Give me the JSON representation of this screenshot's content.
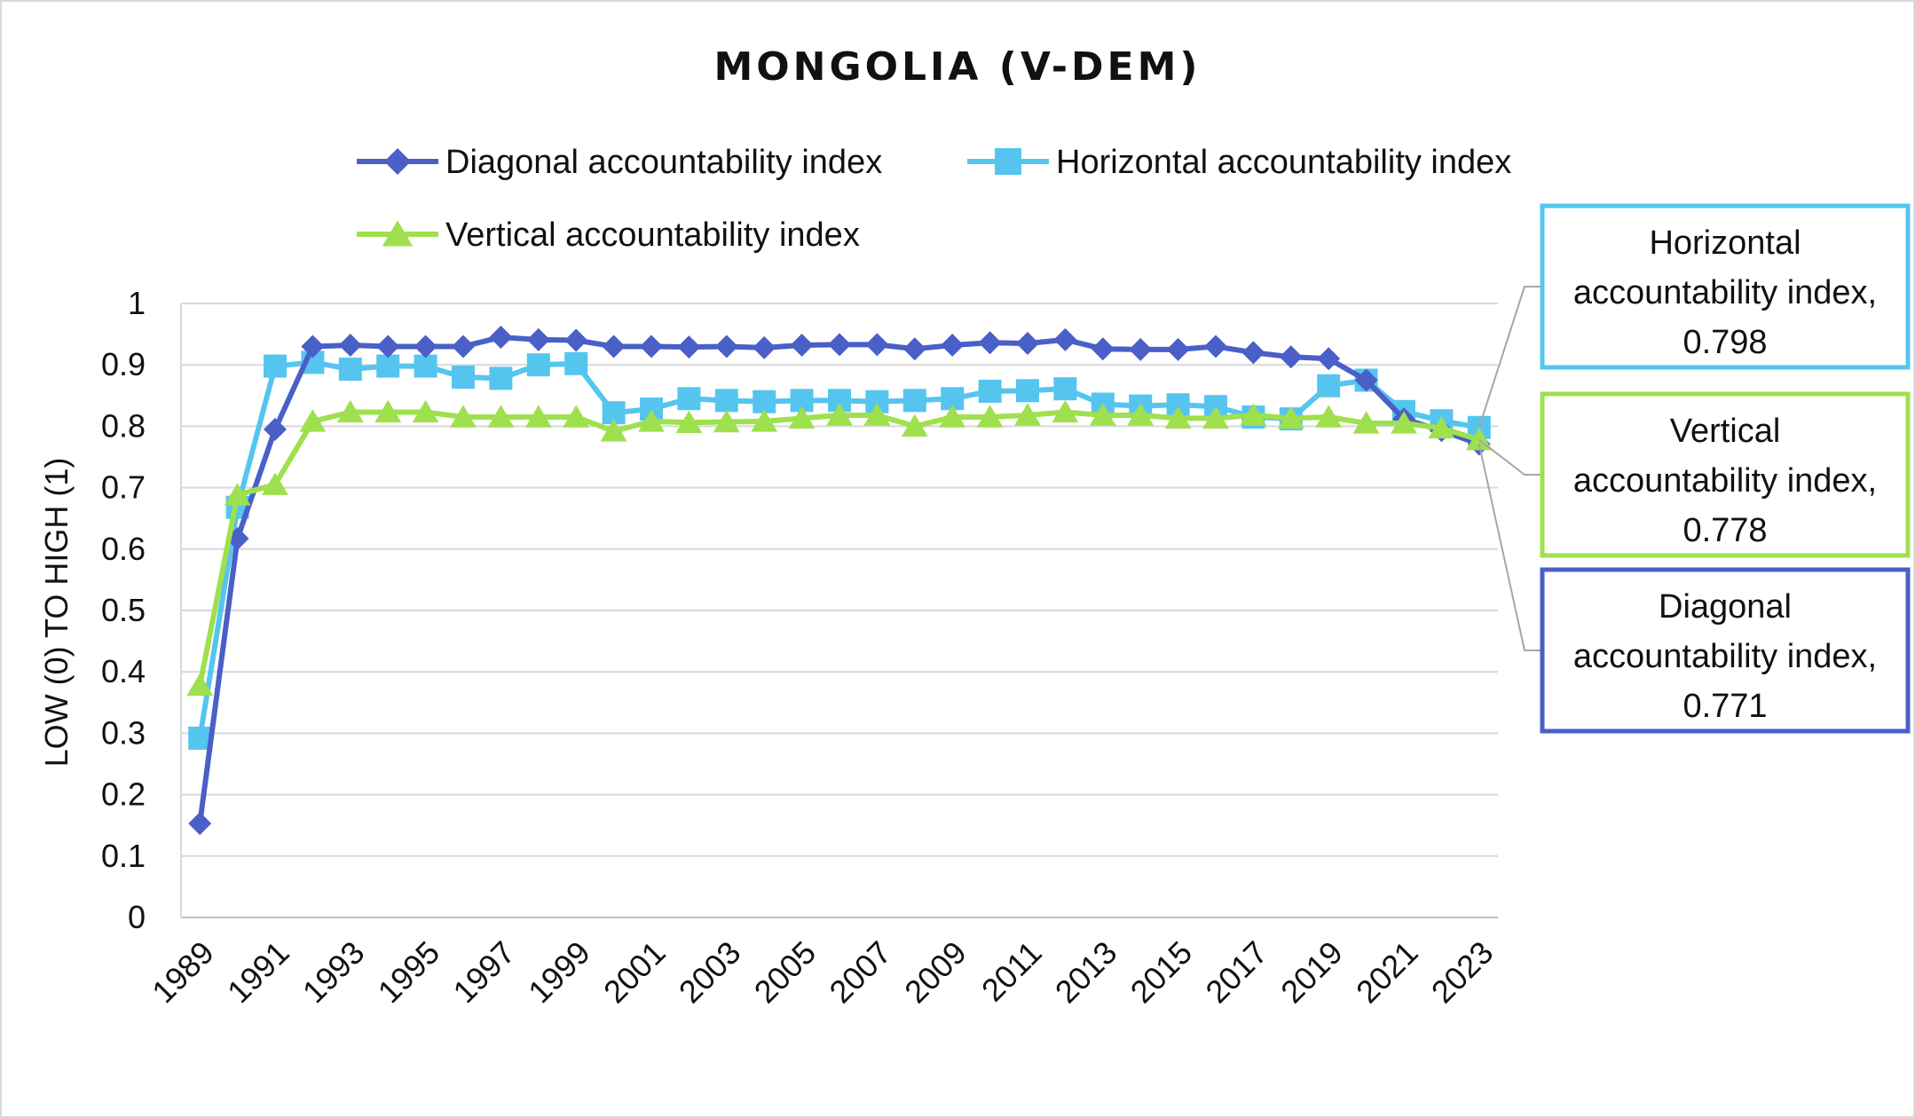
{
  "chart_data": {
    "type": "line",
    "title": "MONGOLIA (V-DEM)",
    "xlabel": "",
    "ylabel": "LOW (0) TO HIGH (1)",
    "ylim": [
      0,
      1
    ],
    "yticks": [
      "0",
      "0.1",
      "0.2",
      "0.3",
      "0.4",
      "0.5",
      "0.6",
      "0.7",
      "0.8",
      "0.9",
      "1"
    ],
    "x": [
      1989,
      1990,
      1991,
      1992,
      1993,
      1994,
      1995,
      1996,
      1997,
      1998,
      1999,
      2000,
      2001,
      2002,
      2003,
      2004,
      2005,
      2006,
      2007,
      2008,
      2009,
      2010,
      2011,
      2012,
      2013,
      2014,
      2015,
      2016,
      2017,
      2018,
      2019,
      2020,
      2021,
      2022,
      2023
    ],
    "xtick_labels": [
      "1989",
      "1991",
      "1993",
      "1995",
      "1997",
      "1999",
      "2001",
      "2003",
      "2005",
      "2007",
      "2009",
      "2011",
      "2013",
      "2015",
      "2017",
      "2019",
      "2021",
      "2023"
    ],
    "grid": true,
    "legend_position": "top",
    "series": [
      {
        "name": "Diagonal accountability index",
        "color": "#4a5fc7",
        "marker": "diamond",
        "values": [
          0.153,
          0.617,
          0.795,
          0.93,
          0.932,
          0.93,
          0.93,
          0.93,
          0.945,
          0.941,
          0.94,
          0.93,
          0.93,
          0.929,
          0.93,
          0.928,
          0.932,
          0.933,
          0.933,
          0.926,
          0.932,
          0.936,
          0.935,
          0.941,
          0.926,
          0.925,
          0.925,
          0.93,
          0.92,
          0.913,
          0.91,
          0.875,
          0.812,
          0.793,
          0.771
        ]
      },
      {
        "name": "Horizontal accountability index",
        "color": "#55c5ef",
        "marker": "square",
        "values": [
          0.292,
          0.668,
          0.898,
          0.904,
          0.893,
          0.898,
          0.898,
          0.88,
          0.878,
          0.9,
          0.902,
          0.822,
          0.828,
          0.845,
          0.842,
          0.84,
          0.842,
          0.842,
          0.84,
          0.842,
          0.845,
          0.857,
          0.858,
          0.861,
          0.836,
          0.833,
          0.835,
          0.832,
          0.815,
          0.812,
          0.866,
          0.875,
          0.824,
          0.809,
          0.798
        ]
      },
      {
        "name": "Vertical accountability index",
        "color": "#9ee04e",
        "marker": "triangle",
        "values": [
          0.378,
          0.688,
          0.705,
          0.808,
          0.823,
          0.823,
          0.823,
          0.815,
          0.815,
          0.815,
          0.815,
          0.792,
          0.808,
          0.806,
          0.807,
          0.808,
          0.813,
          0.818,
          0.818,
          0.8,
          0.815,
          0.815,
          0.818,
          0.823,
          0.818,
          0.818,
          0.813,
          0.813,
          0.818,
          0.813,
          0.815,
          0.805,
          0.805,
          0.797,
          0.778
        ]
      }
    ],
    "callouts": [
      {
        "series": 1,
        "lines": [
          "Horizontal",
          "accountability index,",
          "0.798"
        ],
        "border": "#55c5ef"
      },
      {
        "series": 2,
        "lines": [
          "Vertical",
          "accountability index,",
          "0.778"
        ],
        "border": "#9ee04e"
      },
      {
        "series": 0,
        "lines": [
          "Diagonal",
          "accountability index,",
          "0.771"
        ],
        "border": "#4a5fc7"
      }
    ]
  }
}
